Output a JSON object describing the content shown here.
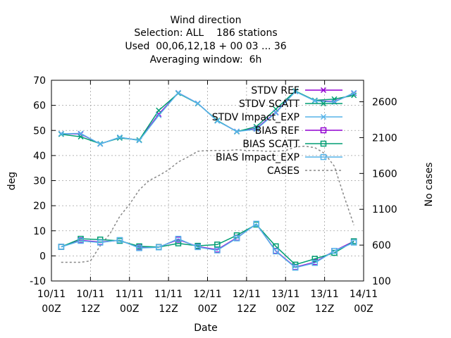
{
  "chart_data": {
    "type": "line",
    "title_lines": [
      "Wind direction",
      "Selection: ALL    186 stations",
      "Used  00,06,12,18 + 00 03 ... 36",
      "Averaging window:  6h"
    ],
    "xlabel": "Date",
    "ylabel": "deg",
    "y2label": "No cases",
    "ylim": [
      -10,
      70
    ],
    "y2lim": [
      100,
      2900
    ],
    "yticks": [
      -10,
      0,
      10,
      20,
      30,
      40,
      50,
      60,
      70
    ],
    "y2ticks": [
      100,
      600,
      1100,
      1600,
      2100,
      2600
    ],
    "xlim": [
      0,
      96
    ],
    "xticks": [
      {
        "x": 0,
        "line1": "10/11",
        "line2": "00Z"
      },
      {
        "x": 12,
        "line1": "10/11",
        "line2": "12Z"
      },
      {
        "x": 24,
        "line1": "11/11",
        "line2": "00Z"
      },
      {
        "x": 36,
        "line1": "11/11",
        "line2": "12Z"
      },
      {
        "x": 48,
        "line1": "12/11",
        "line2": "00Z"
      },
      {
        "x": 60,
        "line1": "12/11",
        "line2": "12Z"
      },
      {
        "x": 72,
        "line1": "13/11",
        "line2": "00Z"
      },
      {
        "x": 84,
        "line1": "13/11",
        "line2": "12Z"
      },
      {
        "x": 96,
        "line1": "14/11",
        "line2": "00Z"
      }
    ],
    "grid": true,
    "legend_position": "top-right",
    "series": [
      {
        "name": "STDV REF",
        "axis": "y1",
        "color": "#9400d3",
        "marker": "x",
        "dash": "",
        "x": [
          3,
          9,
          15,
          21,
          27,
          33,
          39,
          45,
          51,
          57,
          63,
          69,
          75,
          81,
          87,
          93
        ],
        "values": [
          48.7,
          48.6,
          44.6,
          47.2,
          46.1,
          56.5,
          65.0,
          60.8,
          53.9,
          49.6,
          50.8,
          57.2,
          65.6,
          61.9,
          61.5,
          64.8
        ]
      },
      {
        "name": "STDV SCATT",
        "axis": "y1",
        "color": "#009e73",
        "marker": "x",
        "dash": "",
        "x": [
          3,
          9,
          15,
          21,
          27,
          33,
          39,
          45,
          51,
          57,
          63,
          69,
          75,
          81,
          87,
          93
        ],
        "values": [
          48.5,
          47.5,
          44.7,
          47.0,
          46.2,
          58.0,
          64.8,
          60.7,
          54.0,
          49.5,
          51.5,
          58.5,
          65.7,
          62.0,
          62.5,
          64.0
        ]
      },
      {
        "name": "STDV Impact_EXP",
        "axis": "y1",
        "color": "#56b4e9",
        "marker": "x",
        "dash": "",
        "x": [
          3,
          9,
          15,
          21,
          27,
          33,
          39,
          45,
          51,
          57,
          63,
          69,
          75,
          81,
          87,
          93
        ],
        "values": [
          48.7,
          48.8,
          44.6,
          47.3,
          46.0,
          56.0,
          65.0,
          60.8,
          53.8,
          49.6,
          50.5,
          57.0,
          65.5,
          61.8,
          61.3,
          65.0
        ]
      },
      {
        "name": "BIAS REF",
        "axis": "y1",
        "color": "#9400d3",
        "marker": "square",
        "dash": "",
        "x": [
          3,
          9,
          15,
          21,
          27,
          33,
          39,
          45,
          51,
          57,
          63,
          69,
          75,
          81,
          87,
          93
        ],
        "values": [
          3.6,
          6.2,
          5.5,
          6.2,
          3.3,
          3.5,
          6.5,
          3.7,
          2.5,
          7.2,
          12.7,
          2.0,
          -4.5,
          -2.5,
          2.0,
          5.8
        ]
      },
      {
        "name": "BIAS SCATT",
        "axis": "y1",
        "color": "#009e73",
        "marker": "square",
        "dash": "",
        "x": [
          3,
          9,
          15,
          21,
          27,
          33,
          39,
          45,
          51,
          57,
          63,
          69,
          75,
          81,
          87,
          93
        ],
        "values": [
          3.6,
          6.8,
          6.5,
          6.0,
          3.8,
          3.5,
          5.0,
          4.0,
          4.5,
          8.2,
          12.5,
          3.8,
          -3.5,
          -1.2,
          1.2,
          5.8
        ]
      },
      {
        "name": "BIAS Impact_EXP",
        "axis": "y1",
        "color": "#56b4e9",
        "marker": "square",
        "dash": "",
        "x": [
          3,
          9,
          15,
          21,
          27,
          33,
          39,
          45,
          51,
          57,
          63,
          69,
          75,
          81,
          87,
          93
        ],
        "values": [
          3.6,
          6.0,
          5.3,
          6.3,
          3.1,
          3.4,
          6.8,
          3.5,
          2.2,
          7.0,
          12.8,
          1.8,
          -4.7,
          -2.8,
          2.0,
          5.3
        ]
      },
      {
        "name": "CASES",
        "axis": "y2",
        "color": "#888888",
        "marker": "none",
        "dash": "3,3",
        "x": [
          3,
          9,
          12,
          15,
          18,
          21,
          24,
          27,
          30,
          33,
          36,
          39,
          42,
          45,
          48,
          51,
          54,
          57,
          60,
          63,
          66,
          69,
          72,
          75,
          78,
          81,
          84,
          87,
          90,
          93
        ],
        "values": [
          360,
          360,
          380,
          590,
          760,
          1000,
          1170,
          1370,
          1500,
          1570,
          1650,
          1760,
          1830,
          1910,
          1920,
          1920,
          1920,
          1930,
          1920,
          1920,
          1910,
          1910,
          1920,
          1970,
          1980,
          1960,
          1880,
          1700,
          1280,
          880
        ]
      }
    ]
  }
}
